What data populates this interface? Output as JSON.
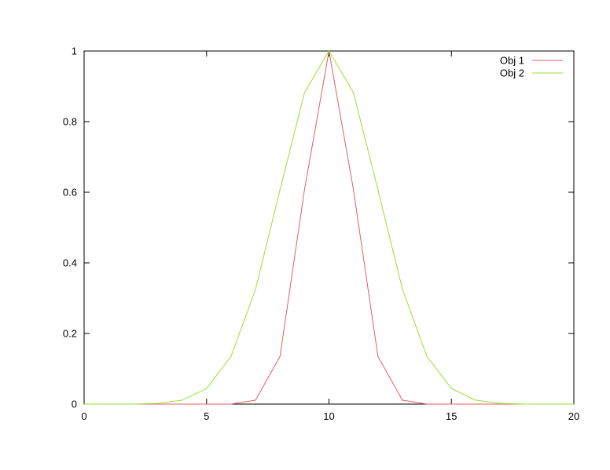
{
  "chart_data": {
    "type": "line",
    "title": "",
    "xlabel": "",
    "ylabel": "",
    "xlim": [
      0,
      20
    ],
    "ylim": [
      0,
      1
    ],
    "x_ticks": [
      0,
      5,
      10,
      15,
      20
    ],
    "x_tick_labels": [
      "0",
      "5",
      "10",
      "15",
      "20"
    ],
    "y_ticks": [
      0,
      0.2,
      0.4,
      0.6,
      0.8,
      1
    ],
    "y_tick_labels": [
      "0",
      "0.2",
      "0.4",
      "0.6",
      "0.8",
      "1"
    ],
    "grid": false,
    "legend_position": "top-right",
    "x": [
      0,
      1,
      2,
      3,
      4,
      5,
      6,
      7,
      8,
      9,
      10,
      11,
      12,
      13,
      14,
      15,
      16,
      17,
      18,
      19,
      20
    ],
    "series": [
      {
        "name": "Obj 1",
        "color": "#e06060",
        "values": [
          0,
          0,
          0,
          0,
          0,
          0,
          0,
          0.011,
          0.135,
          0.607,
          1,
          0.607,
          0.135,
          0.011,
          0,
          0,
          0,
          0,
          0,
          0,
          0
        ]
      },
      {
        "name": "Obj 2",
        "color": "#99e032",
        "values": [
          0,
          0,
          0,
          0.002,
          0.011,
          0.044,
          0.135,
          0.325,
          0.607,
          0.882,
          1,
          0.882,
          0.607,
          0.325,
          0.135,
          0.044,
          0.011,
          0.002,
          0,
          0,
          0
        ]
      }
    ]
  }
}
